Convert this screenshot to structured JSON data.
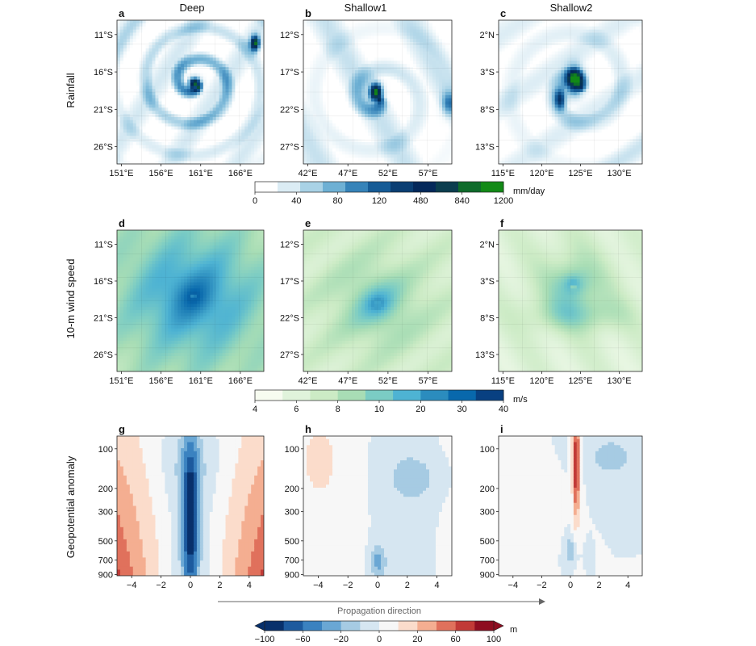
{
  "chart_data": {
    "type": "heatmap",
    "column_titles": [
      "Deep",
      "Shallow1",
      "Shallow2"
    ],
    "row_labels": [
      "Rainfall",
      "10-m wind speed",
      "Geopotential anomaly"
    ],
    "panels": [
      {
        "label": "a",
        "row": 0,
        "col": 0,
        "field": "rain",
        "yticks": [
          "11°S",
          "16°S",
          "21°S",
          "26°S"
        ],
        "xticks": [
          "151°E",
          "156°E",
          "161°E",
          "166°E"
        ]
      },
      {
        "label": "b",
        "row": 0,
        "col": 1,
        "field": "rain",
        "yticks": [
          "12°S",
          "17°S",
          "22°S",
          "27°S"
        ],
        "xticks": [
          "42°E",
          "47°E",
          "52°E",
          "57°E"
        ]
      },
      {
        "label": "c",
        "row": 0,
        "col": 2,
        "field": "rain",
        "yticks": [
          "2°N",
          "3°S",
          "8°S",
          "13°S"
        ],
        "xticks": [
          "115°E",
          "120°E",
          "125°E",
          "130°E"
        ]
      },
      {
        "label": "d",
        "row": 1,
        "col": 0,
        "field": "wind",
        "yticks": [
          "11°S",
          "16°S",
          "21°S",
          "26°S"
        ],
        "xticks": [
          "151°E",
          "156°E",
          "161°E",
          "166°E"
        ]
      },
      {
        "label": "e",
        "row": 1,
        "col": 1,
        "field": "wind",
        "yticks": [
          "12°S",
          "17°S",
          "22°S",
          "27°S"
        ],
        "xticks": [
          "42°E",
          "47°E",
          "52°E",
          "57°E"
        ]
      },
      {
        "label": "f",
        "row": 1,
        "col": 2,
        "field": "wind",
        "yticks": [
          "2°N",
          "3°S",
          "8°S",
          "13°S"
        ],
        "xticks": [
          "115°E",
          "120°E",
          "125°E",
          "130°E"
        ]
      },
      {
        "label": "g",
        "row": 2,
        "col": 0,
        "field": "geopotential",
        "yticks": [
          "100",
          "200",
          "300",
          "500",
          "700",
          "900"
        ],
        "xticks": [
          "−4",
          "−2",
          "0",
          "2",
          "4"
        ]
      },
      {
        "label": "h",
        "row": 2,
        "col": 1,
        "field": "geopotential",
        "yticks": [
          "100",
          "200",
          "300",
          "500",
          "700",
          "900"
        ],
        "xticks": [
          "−4",
          "−2",
          "0",
          "2",
          "4"
        ]
      },
      {
        "label": "i",
        "row": 2,
        "col": 2,
        "field": "geopotential",
        "yticks": [
          "100",
          "200",
          "300",
          "500",
          "700",
          "900"
        ],
        "xticks": [
          "−4",
          "−2",
          "0",
          "2",
          "4"
        ]
      }
    ],
    "colorbars": {
      "rain": {
        "unit": "mm/day",
        "tick_labels": [
          "0",
          "40",
          "80",
          "120",
          "480",
          "840",
          "1200"
        ],
        "colors": [
          "#ffffff",
          "#dbecf4",
          "#a9d2e6",
          "#6eb0d4",
          "#3683b9",
          "#155b96",
          "#0a3e73",
          "#04285a",
          "#0b3d4e",
          "#0e6b2a",
          "#128a16"
        ]
      },
      "wind": {
        "unit": "m/s",
        "tick_labels": [
          "4",
          "6",
          "8",
          "10",
          "20",
          "30",
          "40"
        ],
        "colors": [
          "#f7fcf0",
          "#e0f3db",
          "#ccebc5",
          "#a8ddb5",
          "#7bccc4",
          "#4eb3d3",
          "#2b8cbe",
          "#0868ac",
          "#084081"
        ]
      },
      "geopotential": {
        "unit": "m",
        "tick_labels": [
          "−100",
          "−60",
          "−20",
          "0",
          "20",
          "60",
          "100"
        ],
        "colors": [
          "#08306b",
          "#1d5a9e",
          "#3b82c0",
          "#6aa7d4",
          "#a6cbe3",
          "#d6e6f1",
          "#f7f7f7",
          "#fbdccb",
          "#f4ae91",
          "#e0715c",
          "#c13a37",
          "#8e0d21"
        ]
      }
    },
    "geopotential_y_range_hPa": [
      80,
      920
    ],
    "geopotential_x_range": [
      -5,
      5
    ],
    "xlabel_bottom": "Propagation direction"
  }
}
